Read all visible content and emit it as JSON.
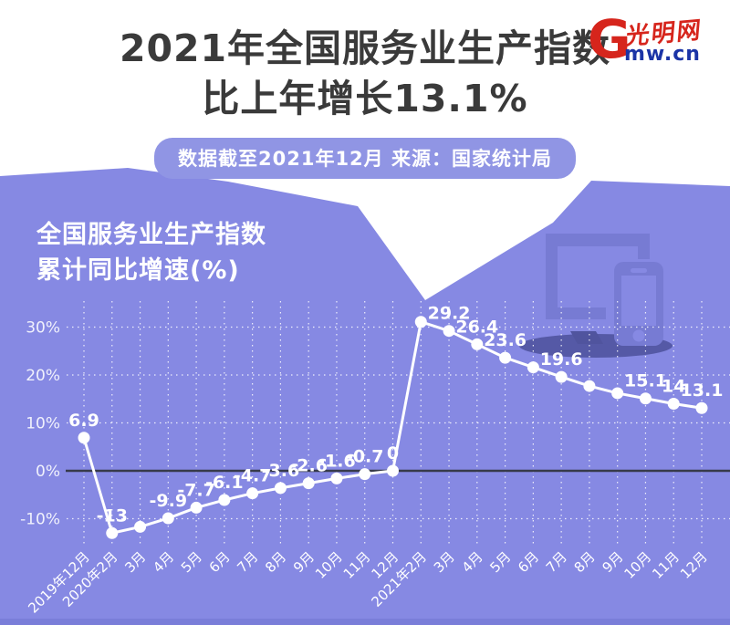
{
  "header": {
    "title_line1": "2021年全国服务业生产指数",
    "title_line2": "比上年增长13.1%",
    "badge": "数据截至2021年12月 来源：国家统计局"
  },
  "logo": {
    "g": "G",
    "cn": "光明网",
    "latin": "mw.cn"
  },
  "chart_heading": {
    "line1": "全国服务业生产指数",
    "line2": "累计同比增速(%)"
  },
  "colors": {
    "background_purple": "#8689e3",
    "badge_purple": "#9095e4",
    "icon_purple": "#777bd3",
    "icon_shadow_purple": "#50549e",
    "footer_strip": "#7a7ed9",
    "title_text": "#3a3a3a",
    "logo_red": "#d6251c",
    "logo_blue": "#1b34a6",
    "line_white": "#ffffff",
    "zero_line": "#363a4a",
    "grid_dots": "rgba(255,255,255,0.85)"
  },
  "chart_data": {
    "type": "line",
    "title": "全国服务业生产指数累计同比增速(%)",
    "xlabel": "",
    "ylabel": "",
    "legend": "none",
    "grid": "dotted white vertical and horizontal lines, dark solid zero line",
    "ylim": [
      -15,
      35
    ],
    "y_ticks": [
      {
        "label": "30%",
        "value": 30
      },
      {
        "label": "20%",
        "value": 20
      },
      {
        "label": "10%",
        "value": 10
      },
      {
        "label": "0%",
        "value": 0
      },
      {
        "label": "-10%",
        "value": -10
      }
    ],
    "categories": [
      "2019年12月",
      "2020年2月",
      "3月",
      "4月",
      "5月",
      "6月",
      "7月",
      "8月",
      "9月",
      "10月",
      "11月",
      "12月",
      "2021年2月",
      "3月",
      "4月",
      "5月",
      "6月",
      "7月",
      "8月",
      "9月",
      "10月",
      "11月",
      "12月"
    ],
    "values": [
      6.9,
      -13,
      -11.7,
      -9.9,
      -7.7,
      -6.1,
      -4.7,
      -3.6,
      -2.6,
      -1.6,
      -0.7,
      0,
      31.1,
      29.2,
      26.4,
      23.6,
      21.6,
      19.6,
      17.7,
      16.2,
      15.1,
      14,
      13.1
    ],
    "point_labels": [
      "6.9",
      "-13",
      null,
      "-9.9",
      "-7.7",
      "-6.1",
      "-4.7",
      "-3.6",
      "-2.6",
      "-1.6",
      "-0.7",
      "0",
      null,
      "29.2",
      "26.4",
      "23.6",
      null,
      "19.6",
      null,
      null,
      "15.1",
      "14",
      "13.1"
    ],
    "series_color": "#ffffff"
  }
}
